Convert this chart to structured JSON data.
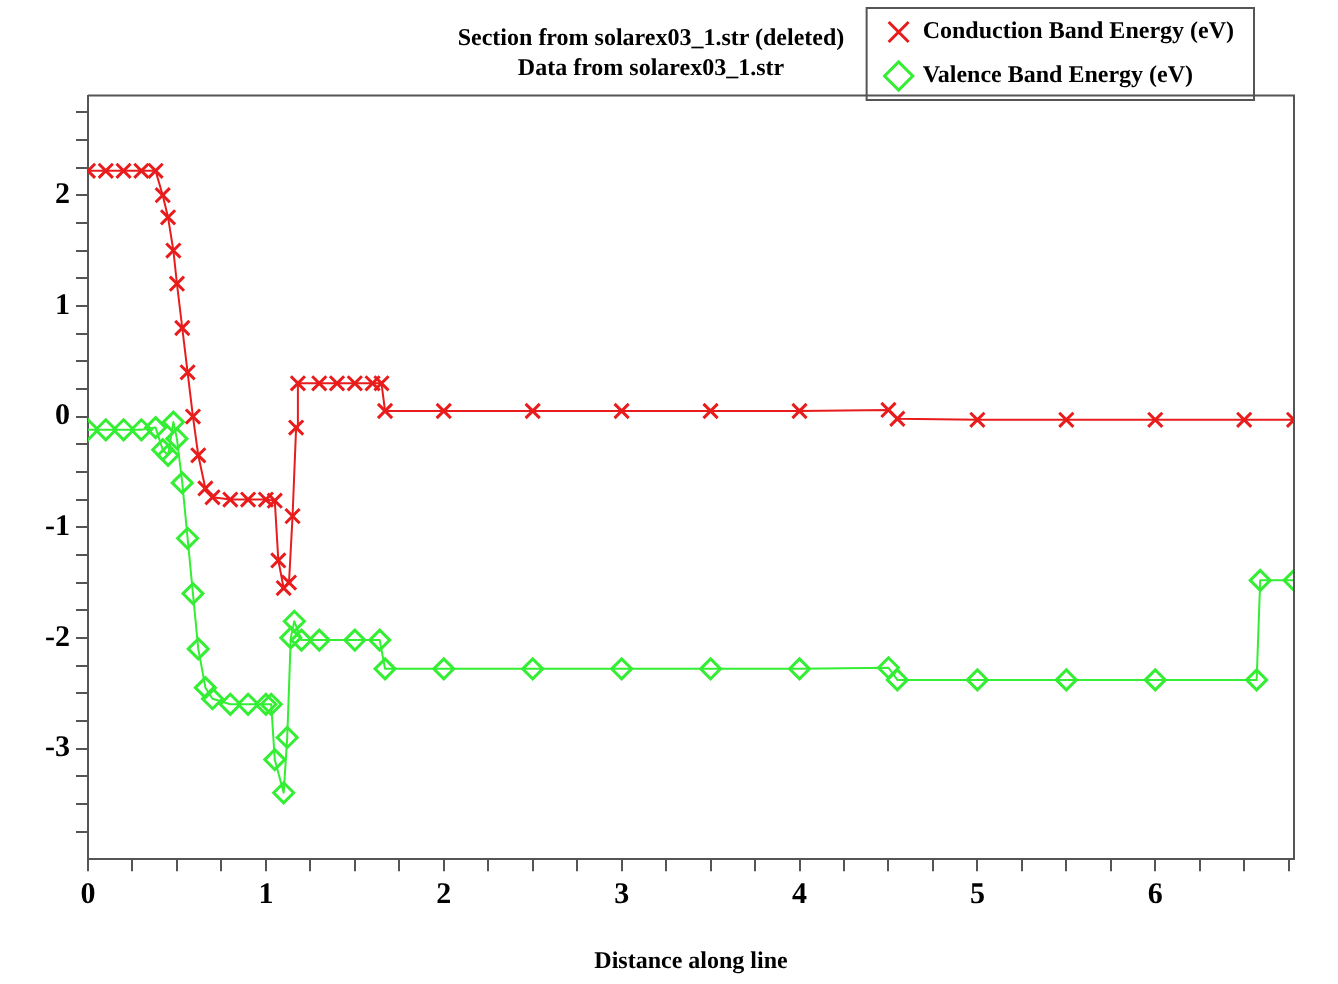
{
  "chart_data": {
    "type": "line",
    "title": "Section from solarex03_1.str (deleted)",
    "subtitle": "Data from solarex03_1.str",
    "xlabel": "Distance along line",
    "xlim": [
      0,
      6.78
    ],
    "ylim": [
      -4,
      2.9
    ],
    "xticks": [
      0,
      {
        "value": 0.25,
        "label": null
      },
      {
        "value": 0.5,
        "label": null
      },
      {
        "value": 0.75,
        "label": null
      },
      1,
      {
        "value": 1.25,
        "label": null
      },
      {
        "value": 1.5,
        "label": null
      },
      {
        "value": 1.75,
        "label": null
      },
      2,
      {
        "value": 2.25,
        "label": null
      },
      {
        "value": 2.5,
        "label": null
      },
      {
        "value": 2.75,
        "label": null
      },
      3,
      {
        "value": 3.25,
        "label": null
      },
      {
        "value": 3.5,
        "label": null
      },
      {
        "value": 3.75,
        "label": null
      },
      4,
      {
        "value": 4.25,
        "label": null
      },
      {
        "value": 4.5,
        "label": null
      },
      {
        "value": 4.75,
        "label": null
      },
      5,
      {
        "value": 5.25,
        "label": null
      },
      {
        "value": 5.5,
        "label": null
      },
      {
        "value": 5.75,
        "label": null
      },
      6,
      {
        "value": 6.25,
        "label": null
      },
      {
        "value": 6.5,
        "label": null
      },
      {
        "value": 6.75,
        "label": null
      }
    ],
    "yticks": [
      {
        "value": -3.75,
        "label": null
      },
      {
        "value": -3.5,
        "label": null
      },
      {
        "value": -3.25,
        "label": null
      },
      -3,
      {
        "value": -2.75,
        "label": null
      },
      {
        "value": -2.5,
        "label": null
      },
      {
        "value": -2.25,
        "label": null
      },
      -2,
      {
        "value": -1.75,
        "label": null
      },
      {
        "value": -1.5,
        "label": null
      },
      {
        "value": -1.25,
        "label": null
      },
      -1,
      {
        "value": -0.75,
        "label": null
      },
      {
        "value": -0.5,
        "label": null
      },
      {
        "value": -0.25,
        "label": null
      },
      0,
      {
        "value": 0.25,
        "label": null
      },
      {
        "value": 0.5,
        "label": null
      },
      {
        "value": 0.75,
        "label": null
      },
      1,
      {
        "value": 1.25,
        "label": null
      },
      {
        "value": 1.5,
        "label": null
      },
      {
        "value": 1.75,
        "label": null
      },
      2,
      {
        "value": 2.25,
        "label": null
      },
      {
        "value": 2.5,
        "label": null
      },
      {
        "value": 2.75,
        "label": null
      }
    ],
    "grid": false,
    "legend": "top right",
    "line_style": "solid",
    "series": [
      {
        "name": "Conduction Band Energy (eV)",
        "color": "#e81c1c",
        "marker": "cross",
        "x": [
          0,
          0.1,
          0.2,
          0.3,
          0.38,
          0.42,
          0.45,
          0.48,
          0.5,
          0.53,
          0.56,
          0.59,
          0.62,
          0.66,
          0.7,
          0.8,
          0.9,
          1.0,
          1.05,
          1.07,
          1.1,
          1.13,
          1.15,
          1.17,
          1.18,
          1.3,
          1.4,
          1.5,
          1.6,
          1.65,
          1.67,
          2,
          2.5,
          3,
          3.5,
          4,
          4.5,
          4.55,
          5,
          5.5,
          6,
          6.5,
          6.78
        ],
        "values": [
          2.22,
          2.22,
          2.22,
          2.22,
          2.22,
          2.0,
          1.8,
          1.5,
          1.2,
          0.8,
          0.4,
          0.0,
          -0.35,
          -0.65,
          -0.73,
          -0.75,
          -0.75,
          -0.75,
          -0.76,
          -1.3,
          -1.55,
          -1.5,
          -0.9,
          -0.1,
          0.3,
          0.3,
          0.3,
          0.3,
          0.3,
          0.3,
          0.05,
          0.05,
          0.05,
          0.05,
          0.05,
          0.05,
          0.06,
          -0.02,
          -0.03,
          -0.03,
          -0.03,
          -0.03,
          -0.03
        ]
      },
      {
        "name": "Valence Band Energy (eV)",
        "color": "#33ee33",
        "marker": "diamond",
        "x": [
          0,
          0.1,
          0.2,
          0.3,
          0.38,
          0.42,
          0.45,
          0.48,
          0.5,
          0.53,
          0.56,
          0.59,
          0.62,
          0.66,
          0.7,
          0.8,
          0.9,
          1.0,
          1.03,
          1.05,
          1.1,
          1.12,
          1.14,
          1.16,
          1.2,
          1.3,
          1.5,
          1.64,
          1.67,
          2,
          2.5,
          3,
          3.5,
          4,
          4.5,
          4.55,
          5,
          5.5,
          6,
          6.57,
          6.59,
          6.78
        ],
        "values": [
          -0.12,
          -0.12,
          -0.12,
          -0.12,
          -0.1,
          -0.3,
          -0.35,
          -0.05,
          -0.2,
          -0.6,
          -1.1,
          -1.6,
          -2.1,
          -2.45,
          -2.55,
          -2.6,
          -2.6,
          -2.6,
          -2.6,
          -3.1,
          -3.4,
          -2.9,
          -2.0,
          -1.85,
          -2.02,
          -2.02,
          -2.02,
          -2.02,
          -2.28,
          -2.28,
          -2.28,
          -2.28,
          -2.28,
          -2.28,
          -2.27,
          -2.38,
          -2.38,
          -2.38,
          -2.38,
          -2.38,
          -1.48,
          -1.48
        ]
      }
    ]
  }
}
